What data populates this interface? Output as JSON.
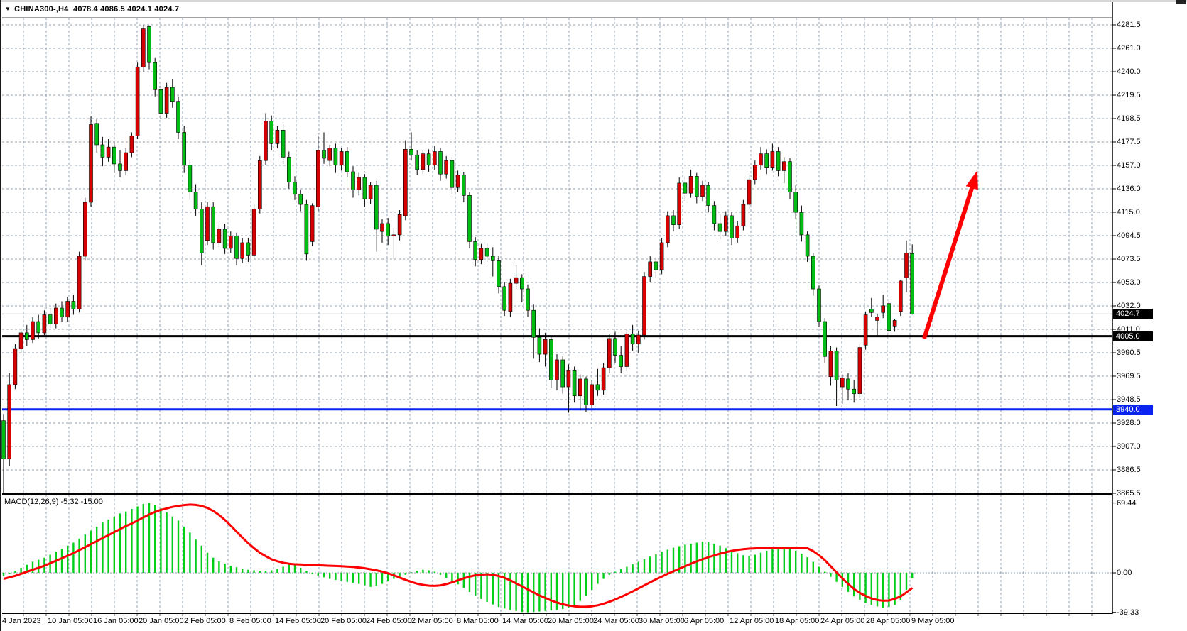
{
  "window": {
    "title_symbol": "CHINA300-,H4",
    "title_ohlc": "4078.4 4086.5 4024.1 4024.7"
  },
  "price_axis": {
    "ticks": [
      "4281.5",
      "4261.0",
      "4240.0",
      "4219.5",
      "4198.5",
      "4177.5",
      "4157.0",
      "4136.0",
      "4115.0",
      "4094.5",
      "4073.5",
      "4053.0",
      "4032.0",
      "4011.0",
      "3990.5",
      "3969.5",
      "3948.5",
      "3928.0",
      "3907.0",
      "3886.5",
      "3865.5"
    ],
    "badges": [
      {
        "text": "4024.7",
        "price": 4024.7,
        "bg": "#000000"
      },
      {
        "text": "4005.0",
        "price": 4005.0,
        "bg": "#000000"
      },
      {
        "text": "3940.0",
        "price": 3940.0,
        "bg": "#0a23f0"
      }
    ]
  },
  "time_axis": {
    "labels": [
      "4 Jan 2023",
      "10 Jan 05:00",
      "16 Jan 05:00",
      "20 Jan 05:00",
      "2 Feb 05:00",
      "8 Feb 05:00",
      "14 Feb 05:00",
      "20 Feb 05:00",
      "24 Feb 05:00",
      "2 Mar 05:00",
      "8 Mar 05:00",
      "14 Mar 05:00",
      "20 Mar 05:00",
      "24 Mar 05:00",
      "30 Mar 05:00",
      "6 Apr 05:00",
      "12 Apr 05:00",
      "18 Apr 05:00",
      "24 Apr 05:00",
      "28 Apr 05:00",
      "9 May 05:00"
    ]
  },
  "macd_panel": {
    "label": "MACD(12,26,9)",
    "macd_value": "-5.32",
    "signal_value": "-15.00",
    "ticks": [
      "69.44",
      "0.00",
      "-39.33"
    ]
  },
  "colors": {
    "bull_candle": "#d60000",
    "bear_candle": "#00bd13",
    "candle_outline": "#000000",
    "histogram": "#00ce17",
    "signal_line": "#ff0000",
    "grid": "#93a1b2",
    "black_hline": "#000000",
    "blue_hline": "#0a23f0",
    "bid_line": "#a9a9a9",
    "arrow": "#ff0000",
    "background": "#ffffff"
  },
  "chart_data": {
    "type": "candlestick+macd",
    "symbol": "CHINA300-",
    "timeframe": "H4",
    "title": "CHINA300-,H4 4078.4 4086.5 4024.1 4024.7",
    "last_bar": {
      "open": 4078.4,
      "high": 4086.5,
      "low": 4024.1,
      "close": 4024.7
    },
    "price_range": {
      "top": 4281.5,
      "bottom": 3865.5
    },
    "macd_range": {
      "max": 69.44,
      "zero": 0.0,
      "min": -39.33
    },
    "macd_current": {
      "macd": -5.32,
      "signal": -15.0
    },
    "color_convention": "inverted: green body = bearish (close<open), red body = bullish (close>open)",
    "horizontal_lines": [
      {
        "price": 4024.7,
        "role": "bid-price-line",
        "color": "#a9a9a9"
      },
      {
        "price": 4005.0,
        "role": "support-black-line",
        "color": "#000000"
      },
      {
        "price": 3940.0,
        "role": "support-blue-line",
        "color": "#0a23f0"
      }
    ],
    "annotation_arrow": {
      "from_price": 4003,
      "to_price": 4154,
      "direction": "up-right",
      "color": "#ff0000"
    },
    "grid": "dashed gray, vertical every ~4 bars, horizontal every ~20.5 points",
    "legend_position": "none",
    "candles": [
      [
        3930,
        3936,
        3866,
        3896
      ],
      [
        3896,
        3972,
        3890,
        3962
      ],
      [
        3962,
        3998,
        3958,
        3994
      ],
      [
        3994,
        4012,
        3990,
        4008
      ],
      [
        4008,
        4015,
        3996,
        4002
      ],
      [
        4002,
        4022,
        3999,
        4018
      ],
      [
        4018,
        4024,
        4003,
        4008
      ],
      [
        4008,
        4028,
        4005,
        4024
      ],
      [
        4024,
        4030,
        4012,
        4016
      ],
      [
        4016,
        4034,
        4012,
        4030
      ],
      [
        4030,
        4036,
        4018,
        4022
      ],
      [
        4022,
        4040,
        4018,
        4036
      ],
      [
        4036,
        4042,
        4024,
        4029
      ],
      [
        4029,
        4080,
        4026,
        4076
      ],
      [
        4076,
        4128,
        4072,
        4124
      ],
      [
        4124,
        4200,
        4120,
        4193
      ],
      [
        4194,
        4198,
        4168,
        4175
      ],
      [
        4175,
        4182,
        4156,
        4164
      ],
      [
        4164,
        4180,
        4160,
        4173
      ],
      [
        4173,
        4177,
        4150,
        4158
      ],
      [
        4158,
        4170,
        4146,
        4152
      ],
      [
        4152,
        4172,
        4148,
        4168
      ],
      [
        4168,
        4186,
        4164,
        4183
      ],
      [
        4183,
        4248,
        4180,
        4244
      ],
      [
        4244,
        4281.5,
        4240,
        4278
      ],
      [
        4280,
        4281,
        4242,
        4248
      ],
      [
        4248,
        4252,
        4218,
        4224
      ],
      [
        4224,
        4229,
        4198,
        4203
      ],
      [
        4203,
        4230,
        4199,
        4226
      ],
      [
        4226,
        4233,
        4208,
        4213
      ],
      [
        4213,
        4218,
        4180,
        4186
      ],
      [
        4186,
        4192,
        4150,
        4157
      ],
      [
        4157,
        4162,
        4126,
        4133
      ],
      [
        4133,
        4140,
        4112,
        4118
      ],
      [
        4118,
        4124,
        4068,
        4079
      ],
      [
        4090,
        4124,
        4086,
        4120
      ],
      [
        4120,
        4124,
        4082,
        4088
      ],
      [
        4088,
        4104,
        4084,
        4100
      ],
      [
        4100,
        4105,
        4078,
        4083
      ],
      [
        4083,
        4098,
        4079,
        4094
      ],
      [
        4094,
        4097,
        4068,
        4074
      ],
      [
        4074,
        4092,
        4070,
        4088
      ],
      [
        4088,
        4092,
        4071,
        4077
      ],
      [
        4077,
        4122,
        4073,
        4118
      ],
      [
        4118,
        4165,
        4114,
        4161
      ],
      [
        4161,
        4203,
        4157,
        4196
      ],
      [
        4196,
        4201,
        4170,
        4176
      ],
      [
        4176,
        4192,
        4172,
        4188
      ],
      [
        4188,
        4193,
        4158,
        4164
      ],
      [
        4164,
        4169,
        4136,
        4142
      ],
      [
        4142,
        4147,
        4126,
        4131
      ],
      [
        4131,
        4135,
        4116,
        4122
      ],
      [
        4122,
        4126,
        4072,
        4078
      ],
      [
        4089,
        4123,
        4085,
        4121
      ],
      [
        4120,
        4183,
        4116,
        4170
      ],
      [
        4170,
        4186,
        4158,
        4163
      ],
      [
        4161,
        4175,
        4156,
        4172
      ],
      [
        4172,
        4176,
        4150,
        4157
      ],
      [
        4157,
        4172,
        4152,
        4169
      ],
      [
        4169,
        4173,
        4146,
        4151
      ],
      [
        4151,
        4156,
        4128,
        4135
      ],
      [
        4135,
        4150,
        4130,
        4146
      ],
      [
        4146,
        4149,
        4120,
        4127
      ],
      [
        4127,
        4142,
        4122,
        4139
      ],
      [
        4139,
        4143,
        4080,
        4100
      ],
      [
        4098,
        4109,
        4088,
        4105
      ],
      [
        4105,
        4110,
        4086,
        4094
      ],
      [
        4094,
        4101,
        4073,
        4095
      ],
      [
        4095,
        4117,
        4090,
        4113
      ],
      [
        4112,
        4179,
        4108,
        4171
      ],
      [
        4171,
        4186,
        4161,
        4166
      ],
      [
        4166,
        4170,
        4148,
        4153
      ],
      [
        4153,
        4170,
        4149,
        4167
      ],
      [
        4167,
        4171,
        4151,
        4157
      ],
      [
        4157,
        4174,
        4153,
        4169
      ],
      [
        4169,
        4172,
        4143,
        4149
      ],
      [
        4149,
        4165,
        4145,
        4161
      ],
      [
        4161,
        4164,
        4131,
        4137
      ],
      [
        4137,
        4152,
        4133,
        4148
      ],
      [
        4148,
        4151,
        4124,
        4130
      ],
      [
        4130,
        4133,
        4083,
        4089
      ],
      [
        4089,
        4093,
        4067,
        4073
      ],
      [
        4073,
        4087,
        4069,
        4083
      ],
      [
        4083,
        4088,
        4071,
        4076
      ],
      [
        4076,
        4084,
        4058,
        4072
      ],
      [
        4072,
        4076,
        4043,
        4049
      ],
      [
        4049,
        4053,
        4023,
        4028
      ],
      [
        4027,
        4056,
        4022,
        4052
      ],
      [
        4052,
        4068,
        4047,
        4057
      ],
      [
        4057,
        4060,
        4035,
        4047
      ],
      [
        4047,
        4051,
        4022,
        4028
      ],
      [
        4028,
        4033,
        3985,
        4004
      ],
      [
        4004,
        4012,
        3982,
        3989
      ],
      [
        3989,
        4008,
        3978,
        4002
      ],
      [
        4002,
        4005,
        3959,
        3966
      ],
      [
        3966,
        3989,
        3957,
        3984
      ],
      [
        3984,
        3987,
        3954,
        3960
      ],
      [
        3960,
        3980,
        3937,
        3975
      ],
      [
        3975,
        3978,
        3946,
        3952
      ],
      [
        3952,
        3971,
        3939,
        3967
      ],
      [
        3967,
        3969,
        3938,
        3944
      ],
      [
        3944,
        3966,
        3941,
        3962
      ],
      [
        3962,
        3976,
        3952,
        3957
      ],
      [
        3957,
        3981,
        3953,
        3977
      ],
      [
        3977,
        4007,
        3972,
        4003
      ],
      [
        4003,
        4009,
        3981,
        3988
      ],
      [
        3988,
        3996,
        3972,
        3978
      ],
      [
        3978,
        4011,
        3974,
        4007
      ],
      [
        4007,
        4015,
        3992,
        3998
      ],
      [
        3998,
        4010,
        3990,
        4006
      ],
      [
        4006,
        4062,
        4002,
        4058
      ],
      [
        4058,
        4076,
        4053,
        4071
      ],
      [
        4071,
        4075,
        4057,
        4064
      ],
      [
        4064,
        4092,
        4060,
        4088
      ],
      [
        4088,
        4116,
        4084,
        4112
      ],
      [
        4112,
        4117,
        4098,
        4104
      ],
      [
        4104,
        4146,
        4100,
        4141
      ],
      [
        4141,
        4147,
        4125,
        4132
      ],
      [
        4132,
        4153,
        4128,
        4147
      ],
      [
        4147,
        4150,
        4123,
        4129
      ],
      [
        4129,
        4143,
        4125,
        4139
      ],
      [
        4139,
        4142,
        4115,
        4121
      ],
      [
        4121,
        4125,
        4099,
        4105
      ],
      [
        4105,
        4113,
        4091,
        4098
      ],
      [
        4098,
        4116,
        4094,
        4112
      ],
      [
        4112,
        4115,
        4086,
        4092
      ],
      [
        4092,
        4107,
        4088,
        4103
      ],
      [
        4103,
        4126,
        4099,
        4122
      ],
      [
        4122,
        4148,
        4118,
        4144
      ],
      [
        4144,
        4161,
        4140,
        4157
      ],
      [
        4157,
        4173,
        4153,
        4167
      ],
      [
        4167,
        4171,
        4149,
        4155
      ],
      [
        4155,
        4176,
        4152,
        4169
      ],
      [
        4169,
        4173,
        4147,
        4152
      ],
      [
        4152,
        4164,
        4141,
        4160
      ],
      [
        4160,
        4163,
        4127,
        4133
      ],
      [
        4133,
        4139,
        4109,
        4115
      ],
      [
        4115,
        4121,
        4089,
        4095
      ],
      [
        4095,
        4098,
        4071,
        4076
      ],
      [
        4076,
        4079,
        4041,
        4047
      ],
      [
        4047,
        4050,
        4013,
        4018
      ],
      [
        4018,
        4021,
        3981,
        3987
      ],
      [
        3969,
        3996,
        3961,
        3992
      ],
      [
        3992,
        3995,
        3943,
        3966
      ],
      [
        3960,
        3971,
        3945,
        3968
      ],
      [
        3967,
        3972,
        3948,
        3958
      ],
      [
        3958,
        3966,
        3946,
        3954
      ],
      [
        3954,
        3998,
        3950,
        3995
      ],
      [
        3997,
        4027,
        3993,
        4024
      ],
      [
        4029,
        4039,
        4022,
        4026
      ],
      [
        4019,
        4025,
        4005,
        4022
      ],
      [
        4026,
        4042,
        4021,
        4032
      ],
      [
        4034,
        4038,
        4003,
        4010
      ],
      [
        4014,
        4020,
        4009,
        4019
      ],
      [
        4027,
        4055,
        4023,
        4054
      ],
      [
        4057,
        4090,
        4044,
        4079
      ],
      [
        4078.4,
        4086.5,
        4024.1,
        4024.7
      ]
    ],
    "macd_histogram": [
      -3,
      -1,
      2,
      5,
      8,
      11,
      13,
      15,
      18,
      21,
      24,
      27,
      30,
      34,
      38,
      42,
      46,
      50,
      53,
      56,
      59,
      61,
      63.5,
      66,
      68.5,
      69.44,
      67,
      64,
      60,
      56,
      52,
      46,
      40,
      33,
      27,
      20,
      15,
      11.5,
      9,
      7,
      5.5,
      4,
      3,
      2.5,
      2,
      2,
      2.5,
      3.5,
      6,
      9,
      7.5,
      5,
      2,
      -1,
      -3,
      -4.5,
      -6,
      -7,
      -8,
      -9,
      -10,
      -11,
      -12.5,
      -14,
      -13,
      -11,
      -8.5,
      -6,
      -4,
      -2,
      0.5,
      2,
      3,
      2.5,
      1,
      -2,
      -5,
      -8,
      -11.5,
      -15,
      -19,
      -23,
      -26,
      -29,
      -31.5,
      -34,
      -35.5,
      -37,
      -38,
      -39,
      -39.33,
      -39,
      -38.5,
      -38,
      -37.5,
      -37,
      -36,
      -34.5,
      -32,
      -28,
      -23,
      -17,
      -11,
      -6,
      -2,
      1,
      3.5,
      6,
      8.5,
      11,
      13.5,
      16,
      18.5,
      21,
      23,
      25,
      26.5,
      28,
      29,
      30,
      31,
      30.5,
      29,
      27,
      24.5,
      22,
      19.5,
      17.5,
      17,
      18,
      20,
      22,
      23.5,
      24.5,
      25,
      24,
      22,
      19,
      15.5,
      11,
      6,
      1,
      -4,
      -9,
      -14,
      -19,
      -23.5,
      -27,
      -30,
      -32,
      -33.5,
      -34.5,
      -34,
      -32,
      -27,
      -17,
      -5.32
    ],
    "macd_signal": [
      -6,
      -4.5,
      -3,
      -1,
      1,
      3,
      5,
      7,
      9.5,
      12,
      14.5,
      17,
      19.5,
      22.5,
      25.5,
      28.5,
      31.5,
      34.5,
      37.5,
      40.5,
      43.5,
      46.5,
      49,
      52,
      55,
      58,
      60.5,
      62.5,
      64,
      65.5,
      66.5,
      67.3,
      67.8,
      67.5,
      66.5,
      64.5,
      61.5,
      57.5,
      52.5,
      47,
      41,
      35,
      29.5,
      24.5,
      20,
      16.5,
      13.5,
      11.5,
      10,
      9,
      8.5,
      8.3,
      8,
      7.8,
      7.5,
      7.2,
      7,
      6.8,
      6.5,
      6.2,
      5.8,
      5.2,
      4.5,
      3.5,
      2.5,
      1.2,
      -0.5,
      -2.5,
      -4.8,
      -7,
      -9,
      -10.8,
      -12,
      -12.8,
      -13,
      -12.5,
      -11.2,
      -9.5,
      -7.5,
      -5.5,
      -3.8,
      -2.5,
      -1.8,
      -1.5,
      -2,
      -3.2,
      -5,
      -7.5,
      -10.5,
      -13.5,
      -16.5,
      -19.5,
      -22.5,
      -25,
      -27.5,
      -29.5,
      -31.3,
      -32.5,
      -33.3,
      -33.8,
      -33.8,
      -33.3,
      -32.3,
      -30.8,
      -28.8,
      -26.5,
      -24,
      -21.3,
      -18.5,
      -15.5,
      -12.5,
      -9.5,
      -6.5,
      -3.8,
      -1,
      1.5,
      4,
      6.5,
      9,
      11.3,
      13.5,
      15.5,
      17.3,
      19,
      20.5,
      21.8,
      22.8,
      23.5,
      24,
      24.3,
      24.5,
      24.5,
      24.5,
      24.5,
      24.6,
      24.8,
      24.9,
      24.8,
      24.4,
      21.5,
      17.5,
      12.5,
      6.5,
      0.5,
      -5.5,
      -11,
      -16,
      -20,
      -23,
      -25.5,
      -27,
      -27.8,
      -27.5,
      -26,
      -23.5,
      -19.5,
      -15
    ]
  }
}
